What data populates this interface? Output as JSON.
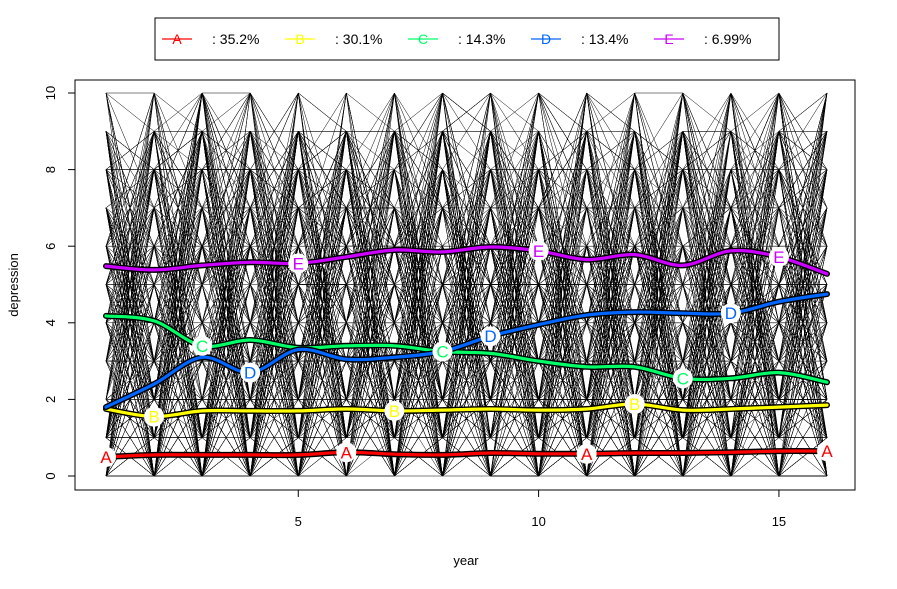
{
  "chart_data": {
    "type": "line",
    "title": "",
    "xlabel": "year",
    "ylabel": "depression",
    "xlim": [
      1,
      16
    ],
    "ylim": [
      0,
      10
    ],
    "x_ticks": [
      5,
      10,
      15
    ],
    "y_ticks": [
      0,
      2,
      4,
      6,
      8,
      10
    ],
    "grid": false,
    "legend_position": "top",
    "x": [
      1,
      2,
      3,
      4,
      5,
      6,
      7,
      8,
      9,
      10,
      11,
      12,
      13,
      14,
      15,
      16
    ],
    "background_lines": {
      "count": 300,
      "color": "#000000",
      "value_range": [
        0,
        10
      ]
    },
    "series": [
      {
        "name": "A",
        "share": ": 35.2%",
        "color": "#ff0000",
        "values": [
          0.5,
          0.55,
          0.55,
          0.55,
          0.55,
          0.62,
          0.57,
          0.55,
          0.6,
          0.58,
          0.58,
          0.6,
          0.6,
          0.62,
          0.65,
          0.65
        ],
        "marker_x": [
          1,
          6,
          11,
          16
        ]
      },
      {
        "name": "B",
        "share": ": 30.1%",
        "color": "#ffff00",
        "values": [
          1.75,
          1.55,
          1.7,
          1.7,
          1.7,
          1.75,
          1.7,
          1.72,
          1.75,
          1.72,
          1.75,
          1.88,
          1.72,
          1.75,
          1.8,
          1.85
        ],
        "marker_x": [
          2,
          7,
          12
        ]
      },
      {
        "name": "C",
        "share": ": 14.3%",
        "color": "#00ff66",
        "values": [
          4.18,
          4.05,
          3.4,
          3.55,
          3.35,
          3.4,
          3.4,
          3.25,
          3.2,
          3.0,
          2.85,
          2.85,
          2.55,
          2.55,
          2.7,
          2.45
        ],
        "marker_x": [
          3,
          8,
          13
        ]
      },
      {
        "name": "D",
        "share": ": 13.4%",
        "color": "#0066ff",
        "values": [
          1.8,
          2.4,
          3.1,
          2.7,
          3.3,
          3.05,
          3.1,
          3.25,
          3.65,
          3.95,
          4.2,
          4.28,
          4.25,
          4.25,
          4.55,
          4.75
        ],
        "marker_x": [
          4,
          9,
          14
        ]
      },
      {
        "name": "E",
        "share": ": 6.99%",
        "color": "#cc00ff",
        "values": [
          5.48,
          5.38,
          5.5,
          5.58,
          5.55,
          5.72,
          5.9,
          5.85,
          5.98,
          5.88,
          5.65,
          5.78,
          5.5,
          5.88,
          5.72,
          5.28
        ],
        "marker_x": [
          5,
          10,
          15
        ]
      }
    ]
  }
}
